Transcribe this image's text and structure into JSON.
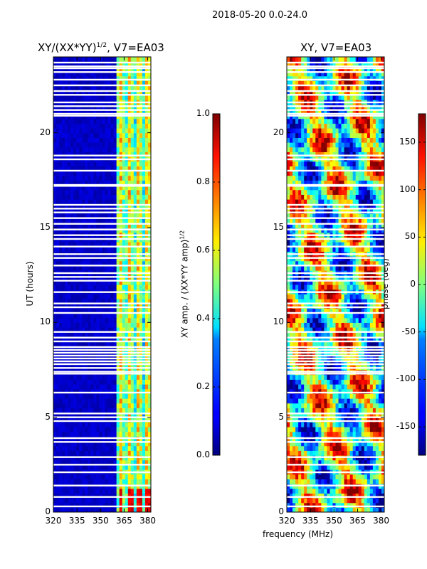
{
  "chart_data": {
    "suptitle": "2018-05-20 0.0-24.0",
    "shared_xlabel": "frequency (MHz)",
    "panels": [
      {
        "type": "heatmap",
        "title": "XY/(XX*YY)",
        "title_exponent": "1/2",
        "title_suffix": ", V7=EA03",
        "xlabel": "",
        "ylabel": "UT (hours)",
        "xlim": [
          320,
          382
        ],
        "ylim": [
          0,
          24
        ],
        "xticks": [
          "320",
          "335",
          "350",
          "365",
          "380"
        ],
        "yticks": [
          "0",
          "5",
          "10",
          "15",
          "20"
        ],
        "colormap": "jet",
        "colorbar": {
          "label": "XY amp. / (XX*YY amp)",
          "label_exponent": "1/2",
          "range": [
            0.0,
            1.0
          ],
          "ticks": [
            "0.0",
            "0.2",
            "0.4",
            "0.6",
            "0.8",
            "1.0"
          ]
        }
      },
      {
        "type": "heatmap",
        "title": "XY, V7=EA03",
        "xlabel": "",
        "ylabel": "",
        "xlim": [
          320,
          382
        ],
        "ylim": [
          0,
          24
        ],
        "xticks": [
          "320",
          "335",
          "350",
          "365",
          "380"
        ],
        "yticks": [
          "0",
          "5",
          "10",
          "15",
          "20"
        ],
        "colormap": "jet",
        "colorbar": {
          "label": "phase (deg)",
          "range": [
            -180,
            180
          ],
          "ticks": [
            "-150",
            "-100",
            "-50",
            "0",
            "50",
            "100",
            "150"
          ]
        }
      }
    ],
    "blank_rows_ut": [
      0.3,
      0.8,
      1.4,
      2.1,
      2.5,
      2.9,
      3.7,
      3.9,
      4.8,
      5.0,
      5.2,
      6.3,
      7.3,
      7.4,
      7.6,
      7.8,
      7.95,
      8.1,
      8.25,
      8.4,
      8.55,
      8.7,
      9.0,
      9.2,
      9.5,
      10.5,
      10.8,
      11.0,
      11.6,
      12.2,
      12.4,
      12.6,
      13.0,
      13.4,
      13.6,
      14.0,
      14.4,
      14.6,
      14.9,
      15.2,
      15.5,
      15.8,
      16.0,
      16.2,
      17.2,
      17.25,
      18.0,
      18.6,
      18.8,
      20.9,
      21.0,
      21.2,
      21.4,
      21.6,
      22.0,
      22.2,
      22.5,
      22.8,
      23.2,
      23.4,
      23.5,
      23.7
    ]
  }
}
